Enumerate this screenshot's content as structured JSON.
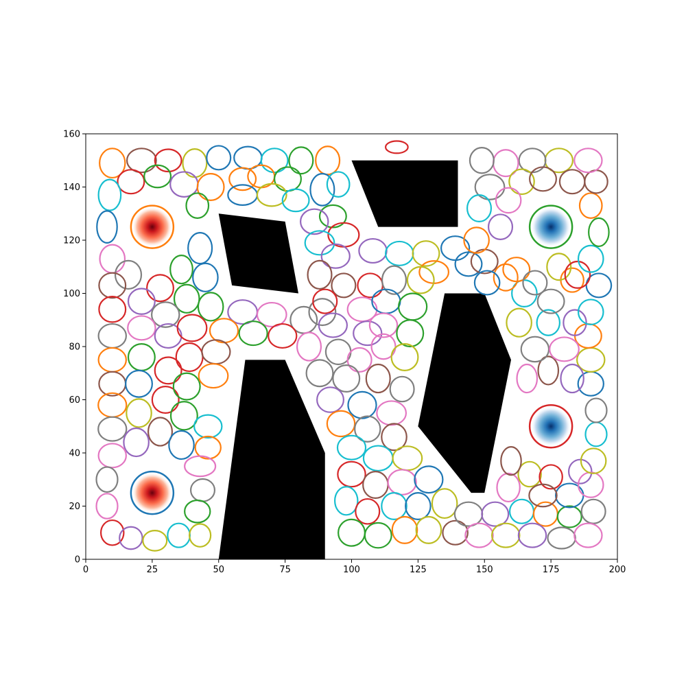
{
  "chart_data": {
    "type": "scatter",
    "title": "",
    "xlabel": "",
    "ylabel": "",
    "xlim": [
      0,
      200
    ],
    "ylim": [
      0,
      160
    ],
    "x_ticks": [
      "0",
      "25",
      "50",
      "75",
      "100",
      "125",
      "150",
      "175",
      "200"
    ],
    "y_ticks": [
      "0",
      "20",
      "40",
      "60",
      "80",
      "100",
      "120",
      "140",
      "160"
    ],
    "grid": false,
    "legend": "none",
    "obstacles": [
      {
        "name": "obstacle-quad-left-top",
        "points": [
          [
            50,
            130
          ],
          [
            75,
            127
          ],
          [
            80,
            100
          ],
          [
            55,
            103
          ]
        ]
      },
      {
        "name": "obstacle-trapezoid-top",
        "points": [
          [
            100,
            150
          ],
          [
            140,
            150
          ],
          [
            140,
            125
          ],
          [
            110,
            125
          ]
        ]
      },
      {
        "name": "obstacle-bottom-left",
        "points": [
          [
            50,
            0
          ],
          [
            60,
            75
          ],
          [
            75,
            75
          ],
          [
            90,
            40
          ],
          [
            90,
            0
          ]
        ]
      },
      {
        "name": "obstacle-right-center",
        "points": [
          [
            135,
            100
          ],
          [
            150,
            100
          ],
          [
            160,
            75
          ],
          [
            150,
            25
          ],
          [
            145,
            25
          ],
          [
            125,
            50
          ]
        ]
      }
    ],
    "sources": [
      {
        "x": 25,
        "y": 125,
        "r": 8,
        "ring_color": "#ff7f0e",
        "cmap": "reds"
      },
      {
        "x": 25,
        "y": 25,
        "r": 8,
        "ring_color": "#1f77b4",
        "cmap": "reds"
      },
      {
        "x": 175,
        "y": 125,
        "r": 8,
        "ring_color": "#2ca02c",
        "cmap": "blues"
      },
      {
        "x": 175,
        "y": 50,
        "r": 8,
        "ring_color": "#d62728",
        "cmap": "blues"
      }
    ],
    "palette": [
      "#1f77b4",
      "#ff7f0e",
      "#2ca02c",
      "#d62728",
      "#9467bd",
      "#8c564b",
      "#e377c2",
      "#7f7f7f",
      "#bcbd22",
      "#17becf"
    ],
    "ellipses": [
      [
        10,
        149,
        4.8,
        5.5,
        2
      ],
      [
        21,
        150,
        5.5,
        4.5,
        6
      ],
      [
        31,
        150,
        5,
        4.2,
        4
      ],
      [
        41,
        149,
        4.5,
        5.3,
        9
      ],
      [
        50,
        151,
        4.5,
        4.5,
        1
      ],
      [
        61,
        151,
        5.2,
        4.2,
        1
      ],
      [
        71,
        150,
        5,
        4.5,
        10
      ],
      [
        81,
        150,
        4.5,
        5,
        3
      ],
      [
        91,
        150,
        4.5,
        5.3,
        2
      ],
      [
        17,
        142,
        5,
        4.5,
        4
      ],
      [
        27,
        144,
        5,
        4.2,
        3
      ],
      [
        37,
        141,
        5.2,
        4.7,
        5
      ],
      [
        47,
        140,
        5,
        5,
        2
      ],
      [
        59,
        143,
        5,
        4.2,
        2
      ],
      [
        66,
        144,
        5,
        4.2,
        2
      ],
      [
        76,
        143,
        5,
        4.5,
        3
      ],
      [
        89,
        139,
        4.5,
        6,
        1
      ],
      [
        95,
        141,
        4.2,
        4.7,
        10
      ],
      [
        9,
        137,
        4.2,
        5.8,
        10
      ],
      [
        42,
        133,
        4.2,
        4.7,
        3
      ],
      [
        59,
        137,
        5.5,
        3.8,
        1
      ],
      [
        70,
        137,
        5.5,
        4.2,
        9
      ],
      [
        79,
        135,
        5,
        4.2,
        10
      ],
      [
        93,
        129,
        5,
        4.2,
        3
      ],
      [
        86,
        127,
        5.2,
        4.7,
        5
      ],
      [
        8,
        125,
        3.8,
        6,
        1
      ],
      [
        43,
        117,
        4.5,
        5.8,
        1
      ],
      [
        10,
        113,
        4.7,
        5.3,
        7
      ],
      [
        16,
        107,
        4.9,
        5.3,
        8
      ],
      [
        36,
        109,
        4.2,
        5.3,
        3
      ],
      [
        45,
        106,
        4.7,
        5.3,
        1
      ],
      [
        10,
        103,
        5,
        4.7,
        6
      ],
      [
        28,
        102,
        5,
        5,
        4
      ],
      [
        38,
        98,
        4.7,
        5.3,
        3
      ],
      [
        47,
        95,
        4.7,
        5.3,
        3
      ],
      [
        21,
        97,
        5,
        4.8,
        5
      ],
      [
        30,
        92,
        5.2,
        4.7,
        8
      ],
      [
        59,
        93,
        5.5,
        4.5,
        5
      ],
      [
        70,
        92,
        5.5,
        4.5,
        7
      ],
      [
        89,
        93,
        5,
        5,
        8
      ],
      [
        97,
        122,
        5.8,
        4.5,
        4
      ],
      [
        88,
        119,
        5.5,
        4.5,
        10
      ],
      [
        94,
        114,
        5.3,
        4.5,
        5
      ],
      [
        88,
        107,
        4.5,
        5.3,
        6
      ],
      [
        97,
        103,
        4.5,
        4.5,
        6
      ],
      [
        107,
        103,
        4.7,
        4.5,
        4
      ],
      [
        108,
        116,
        5.2,
        4.5,
        5
      ],
      [
        118,
        115,
        5.2,
        4.5,
        10
      ],
      [
        128,
        115,
        5,
        4.7,
        9
      ],
      [
        139,
        117,
        5.3,
        4.5,
        1
      ],
      [
        131,
        108,
        5.5,
        4.2,
        2
      ],
      [
        144,
        111,
        5,
        4.5,
        1
      ],
      [
        116,
        105,
        4.5,
        5.3,
        8
      ],
      [
        126,
        105,
        5,
        5,
        9
      ],
      [
        90,
        97,
        4.5,
        4.5,
        4
      ],
      [
        104,
        94,
        5.5,
        4.5,
        7
      ],
      [
        113,
        97,
        5.3,
        4.5,
        1
      ],
      [
        123,
        95,
        5.3,
        5,
        3
      ],
      [
        82,
        90,
        5,
        5,
        8
      ],
      [
        93,
        88,
        5.3,
        4.5,
        5
      ],
      [
        106,
        85,
        5.3,
        4.5,
        5
      ],
      [
        112,
        88,
        5.2,
        4.5,
        7
      ],
      [
        122,
        85,
        5,
        5,
        3
      ],
      [
        10,
        94,
        5,
        4.8,
        4
      ],
      [
        10,
        84,
        5.2,
        4.5,
        8
      ],
      [
        21,
        87,
        5.2,
        4.5,
        7
      ],
      [
        31,
        84,
        5,
        4.5,
        5
      ],
      [
        40,
        87,
        5.5,
        5,
        4
      ],
      [
        52,
        86,
        5.3,
        4.5,
        2
      ],
      [
        63,
        85,
        5.3,
        4.5,
        3
      ],
      [
        74,
        84,
        5.3,
        4.5,
        4
      ],
      [
        84,
        80,
        4.5,
        5.3,
        7
      ],
      [
        95,
        78,
        4.7,
        4.7,
        8
      ],
      [
        103,
        75,
        4.5,
        4.5,
        7
      ],
      [
        112,
        80,
        4.5,
        4.7,
        7
      ],
      [
        120,
        76,
        5,
        5,
        9
      ],
      [
        10,
        75,
        5.2,
        4.5,
        2
      ],
      [
        21,
        76,
        5,
        5,
        3
      ],
      [
        31,
        71,
        5,
        5,
        4
      ],
      [
        39,
        76,
        5,
        5.3,
        4
      ],
      [
        49,
        78,
        5.3,
        4.5,
        6
      ],
      [
        88,
        70,
        5,
        5,
        8
      ],
      [
        98,
        68,
        5,
        5,
        8
      ],
      [
        110,
        68,
        4.5,
        5.3,
        6
      ],
      [
        119,
        64,
        4.5,
        4.7,
        8
      ],
      [
        10,
        66,
        5,
        4.5,
        6
      ],
      [
        20,
        66,
        5,
        5,
        1
      ],
      [
        30,
        60,
        5,
        5,
        4
      ],
      [
        38,
        65,
        5,
        5,
        3
      ],
      [
        48,
        69,
        5.5,
        4.5,
        2
      ],
      [
        92,
        60,
        5,
        4.7,
        5
      ],
      [
        104,
        58,
        5.3,
        5,
        1
      ],
      [
        115,
        55,
        5.5,
        4.5,
        7
      ],
      [
        10,
        58,
        5.3,
        4.5,
        2
      ],
      [
        20,
        55,
        4.7,
        5.3,
        9
      ],
      [
        28,
        48,
        4.5,
        5.3,
        6
      ],
      [
        37,
        54,
        5,
        5.3,
        3
      ],
      [
        46,
        50,
        5.2,
        4.3,
        10
      ],
      [
        10,
        49,
        5.3,
        4.5,
        8
      ],
      [
        19,
        44,
        4.7,
        5.3,
        5
      ],
      [
        36,
        43,
        4.7,
        5.3,
        1
      ],
      [
        46,
        42,
        4.8,
        4.2,
        2
      ],
      [
        96,
        51,
        5.2,
        4.8,
        2
      ],
      [
        106,
        49,
        4.8,
        4.8,
        8
      ],
      [
        116,
        46,
        4.7,
        5,
        6
      ],
      [
        10,
        39,
        5.2,
        4.5,
        7
      ],
      [
        8,
        30,
        4,
        4.7,
        8
      ],
      [
        43,
        35,
        5.8,
        3.8,
        7
      ],
      [
        44,
        26,
        4.5,
        4.2,
        8
      ],
      [
        8,
        20,
        4,
        4.7,
        7
      ],
      [
        42,
        18,
        4.8,
        4.2,
        3
      ],
      [
        10,
        10,
        4.3,
        4.7,
        4
      ],
      [
        17,
        8,
        4.3,
        4.2,
        5
      ],
      [
        26,
        7,
        4.5,
        3.8,
        9
      ],
      [
        35,
        9,
        4.2,
        4.5,
        10
      ],
      [
        43,
        9,
        4,
        4.3,
        9
      ],
      [
        100,
        42,
        5.3,
        4.5,
        10
      ],
      [
        110,
        38,
        5.5,
        4.7,
        10
      ],
      [
        121,
        38,
        5.5,
        4.5,
        9
      ],
      [
        100,
        32,
        5.2,
        4.7,
        4
      ],
      [
        109,
        28,
        4.7,
        5,
        6
      ],
      [
        119,
        29,
        5.3,
        4.7,
        7
      ],
      [
        129,
        30,
        5.3,
        5,
        1
      ],
      [
        98,
        22,
        4.3,
        5.3,
        10
      ],
      [
        106,
        18,
        4.5,
        4.7,
        4
      ],
      [
        116,
        20,
        4.7,
        5,
        10
      ],
      [
        125,
        20,
        4.7,
        5,
        1
      ],
      [
        135,
        21,
        4.7,
        5.5,
        9
      ],
      [
        100,
        10,
        5,
        5,
        3
      ],
      [
        110,
        9,
        5,
        4.7,
        3
      ],
      [
        120,
        11,
        4.7,
        5,
        2
      ],
      [
        129,
        11,
        4.7,
        5,
        9
      ],
      [
        139,
        10,
        4.7,
        4.5,
        6
      ],
      [
        144,
        17,
        5.2,
        4.5,
        8
      ],
      [
        154,
        17,
        5,
        4.5,
        5
      ],
      [
        164,
        18,
        4.5,
        4.5,
        10
      ],
      [
        173,
        17,
        4.5,
        4.5,
        2
      ],
      [
        182,
        16,
        4.5,
        4,
        3
      ],
      [
        191,
        18,
        4.5,
        4.5,
        8
      ],
      [
        148,
        9,
        5.2,
        4.5,
        7
      ],
      [
        158,
        9,
        5.2,
        4.5,
        9
      ],
      [
        168,
        9,
        5.2,
        4.5,
        5
      ],
      [
        179,
        8,
        5.2,
        4,
        8
      ],
      [
        189,
        9,
        5.2,
        4.5,
        7
      ],
      [
        159,
        27,
        4.3,
        5.3,
        7
      ],
      [
        167,
        32,
        4.3,
        4.7,
        9
      ],
      [
        175,
        31,
        4.3,
        4.5,
        4
      ],
      [
        182,
        24,
        5.2,
        4.5,
        1
      ],
      [
        186,
        33,
        4.3,
        4.5,
        5
      ],
      [
        190,
        28,
        4.7,
        4.7,
        7
      ],
      [
        172,
        24,
        5.2,
        4.2,
        6
      ],
      [
        160,
        37,
        3.8,
        5.3,
        6
      ],
      [
        191,
        37,
        4.7,
        4.7,
        9
      ],
      [
        192,
        47,
        4,
        4.5,
        10
      ],
      [
        192,
        56,
        4,
        4.5,
        8
      ],
      [
        190,
        66,
        4.8,
        4.5,
        1
      ],
      [
        190,
        75,
        5.2,
        4.5,
        9
      ],
      [
        189,
        84,
        5,
        4.5,
        2
      ],
      [
        166,
        68,
        3.8,
        5.3,
        7
      ],
      [
        174,
        71,
        3.8,
        5.3,
        6
      ],
      [
        183,
        68,
        4.3,
        5.3,
        5
      ],
      [
        169,
        79,
        5.2,
        4.7,
        8
      ],
      [
        180,
        79,
        5.5,
        4.5,
        7
      ],
      [
        163,
        89,
        4.7,
        5.3,
        9
      ],
      [
        174,
        89,
        4.3,
        4.8,
        10
      ],
      [
        184,
        89,
        4.3,
        4.8,
        5
      ],
      [
        190,
        93,
        4.7,
        4.7,
        10
      ],
      [
        193,
        103,
        4.7,
        4.5,
        1
      ],
      [
        183,
        105,
        4.3,
        4.5,
        2
      ],
      [
        175,
        97,
        5,
        4.5,
        8
      ],
      [
        165,
        100,
        4.7,
        5,
        10
      ],
      [
        158,
        106,
        4.5,
        5,
        2
      ],
      [
        150,
        112,
        5,
        4.5,
        6
      ],
      [
        151,
        104,
        4.7,
        4.5,
        1
      ],
      [
        162,
        109,
        5,
        4.5,
        2
      ],
      [
        169,
        104,
        4.5,
        4.5,
        8
      ],
      [
        178,
        110,
        4.5,
        5,
        9
      ],
      [
        185,
        107,
        4.7,
        5,
        4
      ],
      [
        190,
        113,
        4.7,
        5,
        10
      ],
      [
        193,
        123,
        3.8,
        5.3,
        3
      ],
      [
        190,
        133,
        4.2,
        4.7,
        2
      ],
      [
        192,
        142,
        4.3,
        4.3,
        6
      ],
      [
        189,
        150,
        5.2,
        4.5,
        7
      ],
      [
        178,
        150,
        5.2,
        4.5,
        9
      ],
      [
        168,
        150,
        5,
        4.5,
        8
      ],
      [
        158,
        149,
        4.7,
        5,
        7
      ],
      [
        149,
        150,
        4.5,
        4.8,
        8
      ],
      [
        152,
        140,
        5.5,
        4.7,
        8
      ],
      [
        164,
        142,
        4.7,
        4.7,
        9
      ],
      [
        172,
        143,
        5,
        4.5,
        6
      ],
      [
        183,
        142,
        4.7,
        4.5,
        6
      ],
      [
        159,
        135,
        4.7,
        4.7,
        7
      ],
      [
        148,
        132,
        4.5,
        5,
        10
      ],
      [
        156,
        125,
        4.5,
        4.7,
        5
      ],
      [
        147,
        120,
        4.7,
        4.8,
        2
      ],
      [
        117,
        155,
        4.2,
        2.3,
        4
      ]
    ]
  }
}
